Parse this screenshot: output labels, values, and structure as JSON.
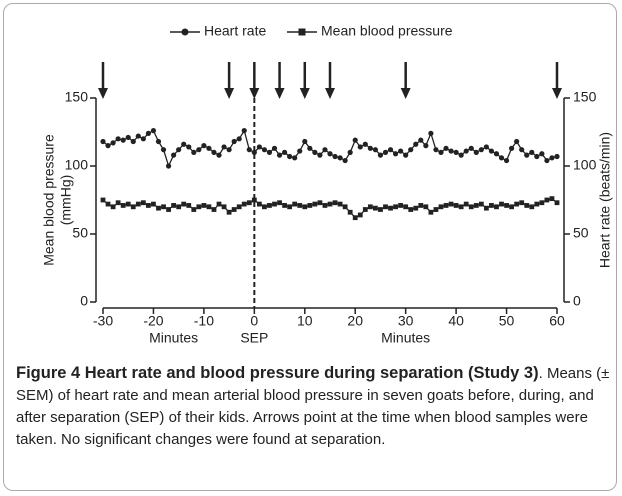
{
  "chart_data": {
    "type": "line",
    "series": [
      {
        "name": "Heart rate",
        "color": "#222",
        "marker": "circle",
        "axis": "y2",
        "values": [
          118,
          115,
          117,
          120,
          119,
          121,
          118,
          122,
          120,
          124,
          126,
          118,
          112,
          100,
          108,
          112,
          116,
          114,
          110,
          112,
          115,
          113,
          110,
          108,
          114,
          112,
          118,
          120,
          126,
          112,
          110,
          114,
          112,
          110,
          113,
          108,
          110,
          107,
          106,
          111,
          118,
          113,
          110,
          108,
          112,
          109,
          107,
          106,
          104,
          110,
          119,
          114,
          116,
          113,
          112,
          108,
          110,
          112,
          109,
          111,
          108,
          112,
          116,
          119,
          115,
          124,
          112,
          110,
          113,
          111,
          110,
          108,
          111,
          113,
          110,
          112,
          114,
          111,
          109,
          106,
          104,
          113,
          118,
          112,
          108,
          110,
          107,
          109,
          104,
          106,
          107
        ]
      },
      {
        "name": "Mean blood pressure",
        "color": "#222",
        "marker": "square",
        "values": [
          75,
          72,
          70,
          73,
          71,
          72,
          70,
          72,
          73,
          71,
          72,
          69,
          70,
          68,
          71,
          70,
          72,
          71,
          68,
          70,
          71,
          70,
          68,
          72,
          70,
          66,
          68,
          70,
          72,
          73,
          75,
          72,
          70,
          71,
          72,
          73,
          71,
          70,
          72,
          71,
          70,
          71,
          72,
          73,
          71,
          72,
          73,
          72,
          70,
          66,
          62,
          64,
          68,
          70,
          69,
          68,
          70,
          69,
          70,
          71,
          70,
          68,
          69,
          71,
          70,
          66,
          68,
          70,
          71,
          72,
          71,
          70,
          72,
          70,
          71,
          72,
          69,
          71,
          70,
          72,
          71,
          70,
          72,
          73,
          71,
          70,
          72,
          73,
          75,
          76,
          73
        ]
      }
    ],
    "x": [
      -30,
      -29,
      -28,
      -27,
      -26,
      -25,
      -24,
      -23,
      -22,
      -21,
      -20,
      -19,
      -18,
      -17,
      -16,
      -15,
      -14,
      -13,
      -12,
      -11,
      -10,
      -9,
      -8,
      -7,
      -6,
      -5,
      -4,
      -3,
      -2,
      -1,
      0,
      1,
      2,
      3,
      4,
      5,
      6,
      7,
      8,
      9,
      10,
      11,
      12,
      13,
      14,
      15,
      16,
      17,
      18,
      19,
      20,
      21,
      22,
      23,
      24,
      25,
      26,
      27,
      28,
      29,
      30,
      31,
      32,
      33,
      34,
      35,
      36,
      37,
      38,
      39,
      40,
      41,
      42,
      43,
      44,
      45,
      46,
      47,
      48,
      49,
      50,
      51,
      52,
      53,
      54,
      55,
      56,
      57,
      58,
      59,
      60
    ],
    "xlim": [
      -30,
      60
    ],
    "xticks": [
      -30,
      -20,
      -10,
      0,
      10,
      20,
      30,
      40,
      50,
      60
    ],
    "ylim": [
      0,
      150
    ],
    "yticks": [
      0,
      50,
      100,
      150
    ],
    "y2lim": [
      0,
      150
    ],
    "y2ticks": [
      0,
      50,
      100,
      150
    ],
    "xlabel": "Minutes",
    "ylabel": [
      "Mean blood pressure",
      "(mmHg)"
    ],
    "y2label": "Heart rate (beats/min)",
    "vline": {
      "x": 0,
      "label": "SEP"
    },
    "arrows": [
      -30,
      -5,
      0,
      5,
      10,
      15,
      30,
      60
    ]
  },
  "caption": {
    "title": "Figure 4 Heart rate and blood pressure during separation (Study 3)",
    "text": ". Means (± SEM) of heart rate and mean arterial blood pressure in seven goats before, during, and after separation (SEP) of their kids. Arrows point at the time when blood samples were taken. No significant changes were found at separation."
  }
}
